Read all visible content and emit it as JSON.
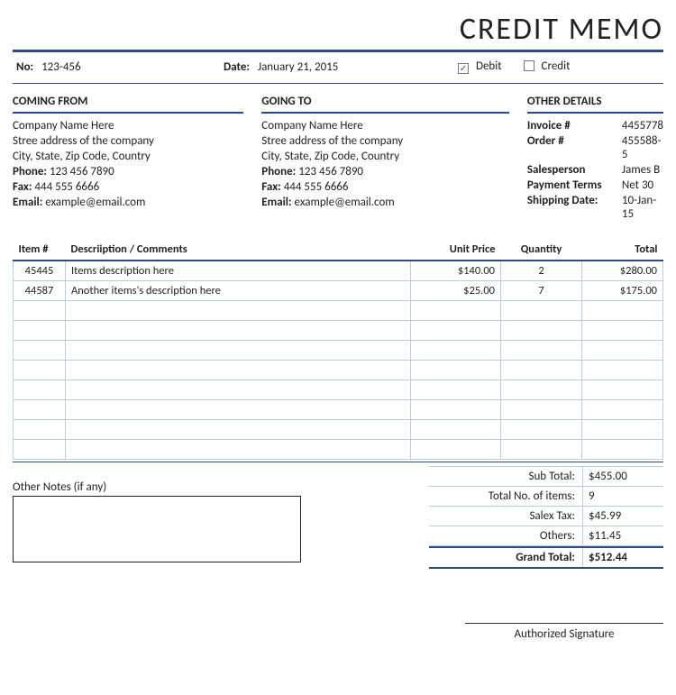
{
  "title": "CREDIT MEMO",
  "colors": {
    "rule": "#2a4a8a",
    "cell_border": "#bfcbe0",
    "text": "#222222",
    "background": "#ffffff"
  },
  "meta": {
    "no_label": "No:",
    "no_value": "123-456",
    "date_label": "Date:",
    "date_value": "January 21, 2015",
    "debit_label": "Debit",
    "credit_label": "Credit",
    "debit_checked": "✓",
    "credit_checked": ""
  },
  "from": {
    "heading": "COMING FROM",
    "company": "Company Name Here",
    "street": "Stree address of the company",
    "city": "City, State, Zip Code, Country",
    "phone_label": "Phone:",
    "phone": "123 456 7890",
    "fax_label": "Fax:",
    "fax": "444 555 6666",
    "email_label": "Email:",
    "email": "example@email.com"
  },
  "to": {
    "heading": "GOING TO",
    "company": "Company Name Here",
    "street": "Stree address of the company",
    "city": "City, State, Zip Code, Country",
    "phone_label": "Phone:",
    "phone": "123 456 7890",
    "fax_label": "Fax:",
    "fax": "444 555 6666",
    "email_label": "Email:",
    "email": "example@email.com"
  },
  "details": {
    "heading": "OTHER DETAILS",
    "rows": [
      {
        "k": "Invoice #",
        "v": "4455778"
      },
      {
        "k": "Order #",
        "v": "455588-5"
      },
      {
        "k": "Salesperson",
        "v": "James B"
      },
      {
        "k": "Payment Terms",
        "v": "Net 30"
      },
      {
        "k": "Shipping Date:",
        "v": "10-Jan-15"
      }
    ]
  },
  "table": {
    "headers": {
      "item": "Item #",
      "desc": "Descriiption / Comments",
      "unit": "Unit Price",
      "qty": "Quantity",
      "total": "Total"
    },
    "rows": [
      {
        "item": "45445",
        "desc": "Items description here",
        "unit": "$140.00",
        "qty": "2",
        "total": "$280.00"
      },
      {
        "item": "44587",
        "desc": "Another items's description here",
        "unit": "$25.00",
        "qty": "7",
        "total": "$175.00"
      },
      {
        "item": "",
        "desc": "",
        "unit": "",
        "qty": "",
        "total": ""
      },
      {
        "item": "",
        "desc": "",
        "unit": "",
        "qty": "",
        "total": ""
      },
      {
        "item": "",
        "desc": "",
        "unit": "",
        "qty": "",
        "total": ""
      },
      {
        "item": "",
        "desc": "",
        "unit": "",
        "qty": "",
        "total": ""
      },
      {
        "item": "",
        "desc": "",
        "unit": "",
        "qty": "",
        "total": ""
      },
      {
        "item": "",
        "desc": "",
        "unit": "",
        "qty": "",
        "total": ""
      },
      {
        "item": "",
        "desc": "",
        "unit": "",
        "qty": "",
        "total": ""
      },
      {
        "item": "",
        "desc": "",
        "unit": "",
        "qty": "",
        "total": ""
      }
    ]
  },
  "notes_label": "Other Notes (if any)",
  "totals": {
    "rows": [
      {
        "label": "Sub Total:",
        "value": "$455.00"
      },
      {
        "label": "Total No. of items:",
        "value": "9"
      },
      {
        "label": "Salex Tax:",
        "value": "$45.99"
      },
      {
        "label": "Others:",
        "value": "$11.45"
      }
    ],
    "grand_label": "Grand Total:",
    "grand_value": "$512.44"
  },
  "signature_label": "Authorized Signature"
}
